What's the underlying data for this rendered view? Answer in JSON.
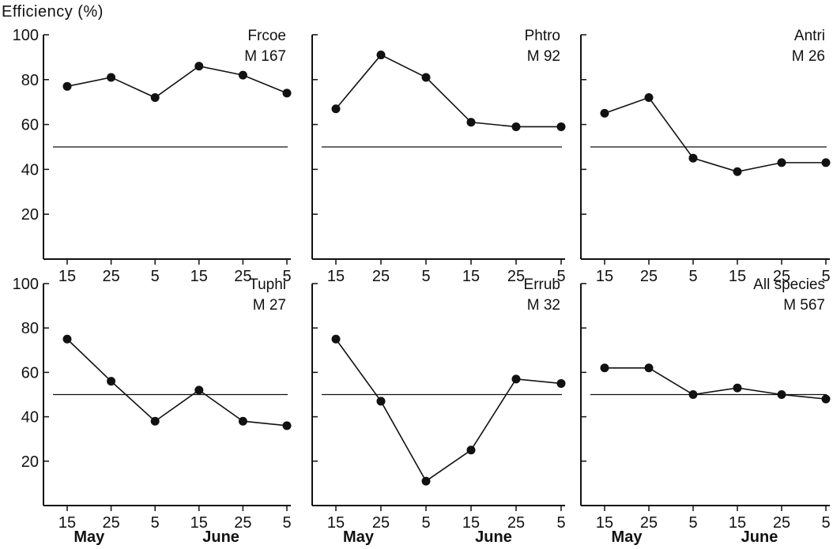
{
  "figure": {
    "ylabel": "Efficiency (%)"
  },
  "chart_data": [
    {
      "type": "line",
      "title": "Frcoe",
      "subtitle": "M 167",
      "x": [
        "15",
        "25",
        "5",
        "15",
        "25",
        "5"
      ],
      "months": [
        "May",
        "June"
      ],
      "values": [
        77,
        81,
        72,
        86,
        82,
        74
      ],
      "reference": 50,
      "ylim": [
        0,
        100
      ],
      "yticks": [
        20,
        40,
        60,
        80,
        100
      ],
      "grid": false
    },
    {
      "type": "line",
      "title": "Phtro",
      "subtitle": "M 92",
      "x": [
        "15",
        "25",
        "5",
        "15",
        "25",
        "5"
      ],
      "months": [
        "May",
        "June"
      ],
      "values": [
        67,
        91,
        81,
        61,
        59,
        59
      ],
      "reference": 50,
      "ylim": [
        0,
        100
      ],
      "grid": false
    },
    {
      "type": "line",
      "title": "Antri",
      "subtitle": "M 26",
      "x": [
        "15",
        "25",
        "5",
        "15",
        "25",
        "5"
      ],
      "months": [
        "May",
        "June"
      ],
      "values": [
        65,
        72,
        45,
        39,
        43,
        43
      ],
      "reference": 50,
      "ylim": [
        0,
        100
      ],
      "grid": false
    },
    {
      "type": "line",
      "title": "Tuphi",
      "subtitle": "M 27",
      "x": [
        "15",
        "25",
        "5",
        "15",
        "25",
        "5"
      ],
      "months": [
        "May",
        "June"
      ],
      "values": [
        75,
        56,
        38,
        52,
        38,
        36
      ],
      "reference": 50,
      "ylim": [
        0,
        100
      ],
      "yticks": [
        20,
        40,
        60,
        80,
        100
      ],
      "grid": false
    },
    {
      "type": "line",
      "title": "Errub",
      "subtitle": "M 32",
      "x": [
        "15",
        "25",
        "5",
        "15",
        "25",
        "5"
      ],
      "months": [
        "May",
        "June"
      ],
      "values": [
        75,
        47,
        11,
        25,
        57,
        55
      ],
      "reference": 50,
      "ylim": [
        0,
        100
      ],
      "grid": false
    },
    {
      "type": "line",
      "title": "All species",
      "subtitle": "M 567",
      "x": [
        "15",
        "25",
        "5",
        "15",
        "25",
        "5"
      ],
      "months": [
        "May",
        "June"
      ],
      "values": [
        62,
        62,
        50,
        53,
        50,
        48
      ],
      "reference": 50,
      "ylim": [
        0,
        100
      ],
      "grid": false
    }
  ]
}
